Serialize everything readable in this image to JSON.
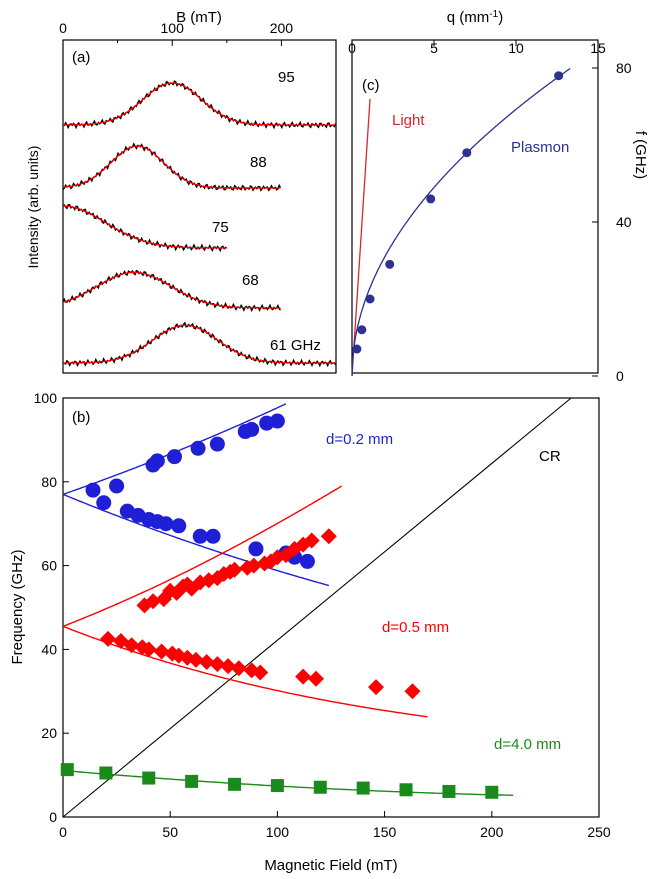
{
  "colors": {
    "blue": "#1f1fd6",
    "red": "#ff0000",
    "green": "#1a8a1a",
    "navy": "#2e3192",
    "lightred": "#d9262a",
    "black": "#000000"
  },
  "chart_data": [
    {
      "panel": "(a)",
      "type": "line",
      "xlabel": "B (mT)",
      "ylabel": "Intensity (arb. units)",
      "xlim": [
        0,
        250
      ],
      "xticks": [
        0,
        100,
        200
      ],
      "series": [
        {
          "name": "95",
          "center": 100,
          "width": 38,
          "offset": 4,
          "amp": 1.0,
          "x_end": 250
        },
        {
          "name": "88",
          "center": 68,
          "width": 34,
          "offset": 3,
          "amp": 1.0,
          "x_end": 200
        },
        {
          "name": "75",
          "center": 0,
          "width": 55,
          "offset": 2,
          "amp": 1.0,
          "x_end": 150
        },
        {
          "name": "68",
          "center": 65,
          "width": 48,
          "offset": 1,
          "amp": 0.85,
          "x_end": 200
        },
        {
          "name": "61 GHz",
          "center": 112,
          "width": 42,
          "offset": 0,
          "amp": 0.9,
          "x_end": 250
        }
      ]
    },
    {
      "panel": "(c)",
      "type": "scatter",
      "xlabel": "q (mm-1)",
      "ylabel": "f (GHz)",
      "xlim": [
        0,
        15
      ],
      "ylim": [
        0,
        80
      ],
      "xticks": [
        0,
        5,
        10,
        15
      ],
      "yticks": [
        0,
        40,
        80
      ],
      "labels": {
        "light": "Light",
        "plasmon": "Plasmon"
      },
      "points": [
        [
          0.3,
          7
        ],
        [
          0.6,
          12
        ],
        [
          1.1,
          20
        ],
        [
          2.3,
          29
        ],
        [
          4.8,
          46
        ],
        [
          7.0,
          58
        ],
        [
          12.6,
          78
        ]
      ]
    },
    {
      "panel": "(b)",
      "type": "scatter",
      "xlabel": "Magnetic Field (mT)",
      "ylabel": "Frequency (GHz)",
      "xlim": [
        0,
        250
      ],
      "ylim": [
        0,
        100
      ],
      "xticks": [
        0,
        50,
        100,
        150,
        200,
        250
      ],
      "yticks": [
        0,
        20,
        40,
        60,
        80,
        100
      ],
      "cr_label": "CR",
      "series": [
        {
          "name": "d=0.2 mm",
          "f0": 77,
          "upper": [
            [
              14,
              78
            ],
            [
              25,
              79
            ],
            [
              42,
              84
            ],
            [
              44,
              85
            ],
            [
              52,
              86
            ],
            [
              63,
              88
            ],
            [
              72,
              89
            ],
            [
              85,
              92
            ],
            [
              88,
              92.5
            ],
            [
              95,
              94
            ],
            [
              100,
              94.5
            ]
          ],
          "lower": [
            [
              19,
              75
            ],
            [
              30,
              73
            ],
            [
              35,
              72
            ],
            [
              40,
              71
            ],
            [
              44,
              70.5
            ],
            [
              48,
              70
            ],
            [
              54,
              69.5
            ],
            [
              64,
              67
            ],
            [
              70,
              67
            ],
            [
              90,
              64
            ],
            [
              104,
              63
            ],
            [
              108,
              62
            ],
            [
              114,
              61
            ]
          ]
        },
        {
          "name": "d=0.5 mm",
          "f0": 45.5,
          "upper": [
            [
              38,
              50.5
            ],
            [
              42,
              51.5
            ],
            [
              47,
              52
            ],
            [
              50,
              54
            ],
            [
              53,
              53.5
            ],
            [
              56,
              55
            ],
            [
              58,
              55.5
            ],
            [
              60,
              54.5
            ],
            [
              64,
              56
            ],
            [
              68,
              56.5
            ],
            [
              72,
              57
            ],
            [
              75,
              58
            ],
            [
              78,
              58.5
            ],
            [
              80,
              59
            ],
            [
              86,
              59.5
            ],
            [
              89,
              60
            ],
            [
              94,
              60.5
            ],
            [
              97,
              61
            ],
            [
              100,
              62
            ],
            [
              104,
              62.5
            ],
            [
              108,
              64
            ],
            [
              112,
              65
            ],
            [
              116,
              66
            ],
            [
              124,
              67
            ]
          ],
          "lower": [
            [
              21,
              42.5
            ],
            [
              27,
              42
            ],
            [
              32,
              41
            ],
            [
              37,
              40.5
            ],
            [
              40,
              40
            ],
            [
              46,
              39.5
            ],
            [
              51,
              39
            ],
            [
              54,
              38.5
            ],
            [
              58,
              38
            ],
            [
              62,
              37.5
            ],
            [
              67,
              37
            ],
            [
              72,
              36.5
            ],
            [
              77,
              36
            ],
            [
              82,
              35.5
            ],
            [
              88,
              35
            ],
            [
              92,
              34.5
            ],
            [
              112,
              33.5
            ],
            [
              118,
              33
            ],
            [
              146,
              31
            ],
            [
              163,
              30
            ]
          ]
        },
        {
          "name": "d=4.0 mm",
          "f0": 11,
          "points": [
            [
              2,
              11.3
            ],
            [
              20,
              10.5
            ],
            [
              40,
              9.3
            ],
            [
              60,
              8.5
            ],
            [
              80,
              7.8
            ],
            [
              100,
              7.5
            ],
            [
              120,
              7.1
            ],
            [
              140,
              6.9
            ],
            [
              160,
              6.5
            ],
            [
              180,
              6.1
            ],
            [
              200,
              5.9
            ]
          ]
        }
      ]
    }
  ]
}
